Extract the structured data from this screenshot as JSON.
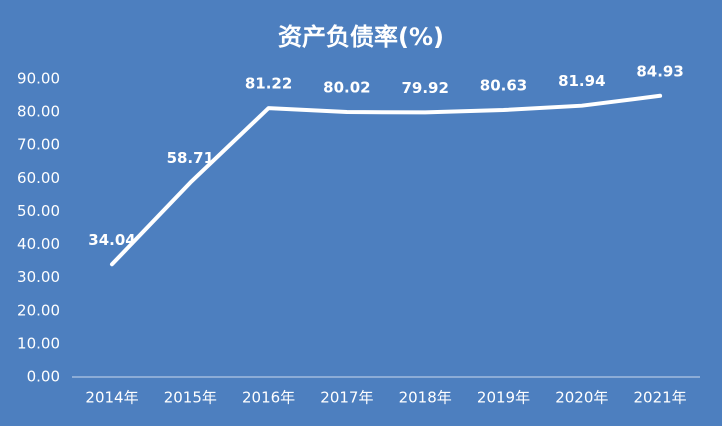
{
  "chart_data": {
    "type": "line",
    "title": "资产负债率(%)",
    "categories": [
      "2014年",
      "2015年",
      "2016年",
      "2017年",
      "2018年",
      "2019年",
      "2020年",
      "2021年"
    ],
    "series": [
      {
        "name": "资产负债率",
        "color": "#ffffff",
        "values": [
          34.04,
          58.71,
          81.22,
          80.02,
          79.92,
          80.63,
          81.94,
          84.93
        ]
      }
    ],
    "ylim": [
      0,
      90
    ],
    "yticks": [
      {
        "value": 0,
        "label": "0.00"
      },
      {
        "value": 10,
        "label": "10.00"
      },
      {
        "value": 20,
        "label": "20.00"
      },
      {
        "value": 30,
        "label": "30.00"
      },
      {
        "value": 40,
        "label": "40.00"
      },
      {
        "value": 50,
        "label": "50.00"
      },
      {
        "value": 60,
        "label": "60.00"
      },
      {
        "value": 70,
        "label": "70.00"
      },
      {
        "value": 80,
        "label": "80.00"
      },
      {
        "value": 90,
        "label": "90.00"
      }
    ],
    "grid": false
  }
}
